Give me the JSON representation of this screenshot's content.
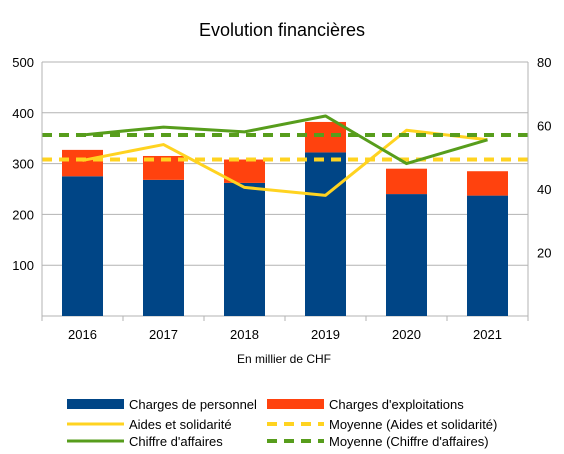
{
  "chart_data": {
    "type": "bar",
    "title": "Evolution financières",
    "xlabel": "En millier de CHF",
    "ylabel": "",
    "categories": [
      "2016",
      "2017",
      "2018",
      "2019",
      "2020",
      "2021"
    ],
    "ylim": [
      0,
      500
    ],
    "yticks": [
      0,
      100,
      200,
      300,
      400,
      500
    ],
    "ytick_labels": [
      "",
      "100",
      "200",
      "300",
      "400",
      "500"
    ],
    "y2lim": [
      0,
      80
    ],
    "y2ticks": [
      0,
      20,
      40,
      60,
      80
    ],
    "y2tick_labels": [
      "",
      "20",
      "40",
      "60",
      "80"
    ],
    "grid": true,
    "legend_position": "bottom",
    "series": [
      {
        "name": "Charges de personnel",
        "type": "stacked-bar",
        "axis": "left",
        "color": "#004586",
        "values": [
          275,
          268,
          262,
          322,
          240,
          237
        ]
      },
      {
        "name": "Charges d'exploitations",
        "type": "stacked-bar",
        "axis": "left",
        "color": "#ff420e",
        "values": [
          52,
          47,
          46,
          60,
          50,
          48
        ]
      },
      {
        "name": "Aides et solidarité",
        "type": "line",
        "axis": "right",
        "color": "#ffd320",
        "dashed": false,
        "values": [
          49,
          54,
          40.5,
          38,
          58.5,
          55.5
        ]
      },
      {
        "name": "Moyenne (Aides et solidarité)",
        "type": "line",
        "axis": "right",
        "color": "#ffd320",
        "dashed": true,
        "values": [
          49.3,
          49.3,
          49.3,
          49.3,
          49.3,
          49.3
        ]
      },
      {
        "name": "Chiffre d'affaires",
        "type": "line",
        "axis": "right",
        "color": "#579d1c",
        "dashed": false,
        "values": [
          57,
          59.5,
          58,
          63,
          48,
          55.5
        ]
      },
      {
        "name": "Moyenne (Chiffre d'affaires)",
        "type": "line",
        "axis": "right",
        "color": "#579d1c",
        "dashed": true,
        "values": [
          57,
          57,
          57,
          57,
          57,
          57
        ]
      }
    ]
  }
}
